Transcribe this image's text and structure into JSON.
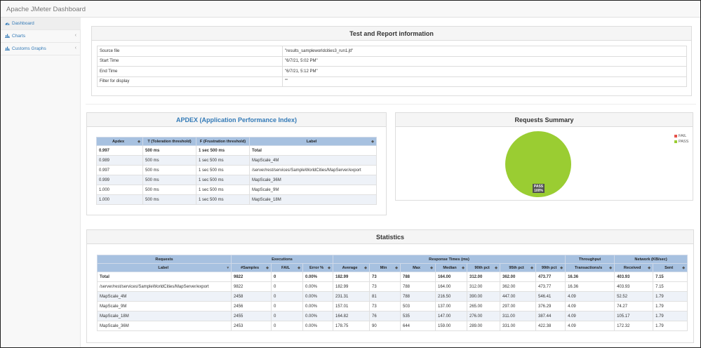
{
  "app": {
    "title": "Apache JMeter Dashboard"
  },
  "sidebar": {
    "items": [
      {
        "label": "Dashboard",
        "icon": "dashboard-icon"
      },
      {
        "label": "Charts",
        "icon": "bar-chart-icon"
      },
      {
        "label": "Customs Graphs",
        "icon": "bar-chart-icon"
      }
    ]
  },
  "test_info": {
    "title": "Test and Report information",
    "rows": [
      {
        "key": "Source file",
        "value": "\"results_sampleworldcities3_run1.jtl\""
      },
      {
        "key": "Start Time",
        "value": "\"6/7/21, 5:02 PM\""
      },
      {
        "key": "End Time",
        "value": "\"6/7/21, 5:12 PM\""
      },
      {
        "key": "Filter for display",
        "value": "\"\""
      }
    ]
  },
  "apdex": {
    "title": "APDEX (Application Performance Index)",
    "headers": [
      "Apdex",
      "T (Toleration threshold)",
      "F (Frustration threshold)",
      "Label"
    ],
    "rows": [
      [
        "0.997",
        "500 ms",
        "1 sec 500 ms",
        "Total"
      ],
      [
        "0.989",
        "500 ms",
        "1 sec 500 ms",
        "MapScale_4M"
      ],
      [
        "0.997",
        "500 ms",
        "1 sec 500 ms",
        "/server/rest/services/SampleWorldCities/MapServer/export"
      ],
      [
        "0.999",
        "500 ms",
        "1 sec 500 ms",
        "MapScale_36M"
      ],
      [
        "1.000",
        "500 ms",
        "1 sec 500 ms",
        "MapScale_9M"
      ],
      [
        "1.000",
        "500 ms",
        "1 sec 500 ms",
        "MapScale_18M"
      ]
    ]
  },
  "summary": {
    "title": "Requests Summary",
    "legend": [
      {
        "label": "FAIL",
        "color": "#e5534b"
      },
      {
        "label": "PASS",
        "color": "#9acd32"
      }
    ],
    "pie_label_name": "PASS",
    "pie_label_value": "100%",
    "chart_data": {
      "type": "pie",
      "categories": [
        "FAIL",
        "PASS"
      ],
      "values": [
        0,
        100
      ],
      "colors": [
        "#e5534b",
        "#9acd32"
      ]
    }
  },
  "statistics": {
    "title": "Statistics",
    "groups": [
      {
        "label": "Requests",
        "span": 1
      },
      {
        "label": "Executions",
        "span": 3
      },
      {
        "label": "Response Times (ms)",
        "span": 7
      },
      {
        "label": "Throughput",
        "span": 1
      },
      {
        "label": "Network (KB/sec)",
        "span": 2
      }
    ],
    "headers": [
      "Label",
      "#Samples",
      "FAIL",
      "Error %",
      "Average",
      "Min",
      "Max",
      "Median",
      "90th pct",
      "95th pct",
      "99th pct",
      "Transactions/s",
      "Received",
      "Sent"
    ],
    "rows": [
      [
        "Total",
        "9822",
        "0",
        "0.00%",
        "182.99",
        "73",
        "788",
        "164.00",
        "312.00",
        "362.00",
        "473.77",
        "16.36",
        "403.93",
        "7.15"
      ],
      [
        "/server/rest/services/SampleWorldCities/MapServer/export",
        "9822",
        "0",
        "0.00%",
        "182.99",
        "73",
        "788",
        "164.00",
        "312.00",
        "362.00",
        "473.77",
        "16.36",
        "403.93",
        "7.15"
      ],
      [
        "MapScale_4M",
        "2458",
        "0",
        "0.00%",
        "231.31",
        "81",
        "788",
        "216.50",
        "390.00",
        "447.00",
        "546.41",
        "4.09",
        "52.52",
        "1.79"
      ],
      [
        "MapScale_9M",
        "2456",
        "0",
        "0.00%",
        "157.01",
        "73",
        "503",
        "137.00",
        "265.00",
        "297.00",
        "376.29",
        "4.09",
        "74.27",
        "1.79"
      ],
      [
        "MapScale_18M",
        "2455",
        "0",
        "0.00%",
        "164.82",
        "76",
        "535",
        "147.00",
        "276.00",
        "311.00",
        "387.44",
        "4.09",
        "105.17",
        "1.79"
      ],
      [
        "MapScale_36M",
        "2453",
        "0",
        "0.00%",
        "178.75",
        "90",
        "644",
        "159.00",
        "289.00",
        "331.00",
        "422.38",
        "4.09",
        "172.32",
        "1.79"
      ]
    ]
  }
}
